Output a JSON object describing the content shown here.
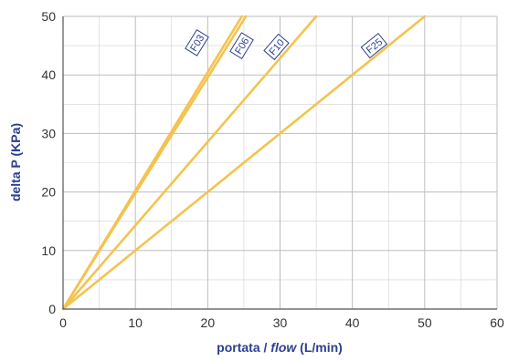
{
  "chart_data": {
    "type": "line",
    "title": "",
    "xlabel_parts": [
      "portata / ",
      "flow",
      " (L/min)"
    ],
    "ylabel": "delta P (KPa)",
    "xlim": [
      0,
      60
    ],
    "ylim": [
      0,
      50
    ],
    "x_ticks": [
      0,
      10,
      20,
      30,
      40,
      50,
      60
    ],
    "y_ticks": [
      0,
      10,
      20,
      30,
      40,
      50
    ],
    "grid": true,
    "legend": "none",
    "line_color": "#f4c34f",
    "label_color": "#2b3f8f",
    "grid_color": "#bdbdbd",
    "series": [
      {
        "name": "F03",
        "x": [
          0,
          25
        ],
        "y": [
          0,
          50
        ]
      },
      {
        "name": "F06",
        "x": [
          0,
          25
        ],
        "y": [
          0,
          50
        ]
      },
      {
        "name": "F10",
        "x": [
          0,
          35
        ],
        "y": [
          0,
          50
        ]
      },
      {
        "name": "F25",
        "x": [
          0,
          50
        ],
        "y": [
          0,
          50
        ]
      }
    ]
  }
}
